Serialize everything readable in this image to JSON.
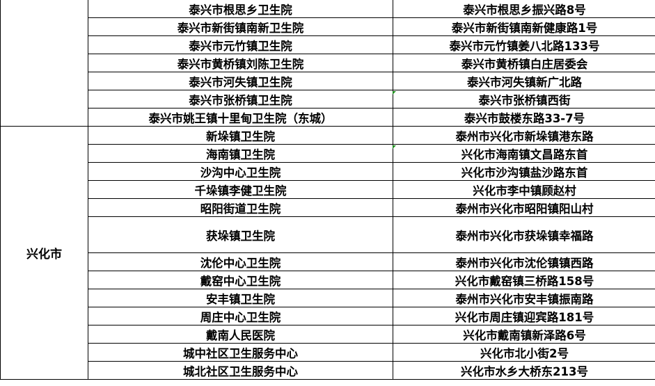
{
  "groups": [
    {
      "city": "",
      "rows": [
        {
          "name": "泰兴市根思乡卫生院",
          "address": "泰兴市根思乡振兴路8号"
        },
        {
          "name": "泰兴市新街镇南新卫生院",
          "address": "泰兴市新街镇南新健康路1号"
        },
        {
          "name": "泰兴市元竹镇卫生院",
          "address": "泰兴市元竹镇姜八北路133号"
        },
        {
          "name": "泰兴市黄桥镇刘陈卫生院",
          "address": "泰兴市黄桥镇白庄居委会"
        },
        {
          "name": "泰兴市河失镇卫生院",
          "address": "泰兴市河失镇新广北路"
        },
        {
          "name": "泰兴市张桥镇卫生院",
          "address": "泰兴市张桥镇西街"
        },
        {
          "name": "泰兴市姚王镇十里甸卫生院（东城）",
          "address": "泰兴市鼓楼东路33-7号"
        }
      ]
    },
    {
      "city": "兴化市",
      "rows": [
        {
          "name": "新垛镇卫生院",
          "address": "泰州市兴化市新垛镇港东路"
        },
        {
          "name": "海南镇卫生院",
          "address": "兴化市海南镇文昌路东首"
        },
        {
          "name": "沙沟中心卫生院",
          "address": "兴化市沙沟镇盐沙路东首"
        },
        {
          "name": "千垛镇李健卫生院",
          "address": "兴化市李中镇顾赵村"
        },
        {
          "name": "昭阳街道卫生院",
          "address": "泰州市兴化市昭阳镇阳山村"
        },
        {
          "name": "获垛镇卫生院",
          "address": "泰州市兴化市获垛镇幸福路"
        },
        {
          "name": "沈伦中心卫生院",
          "address": "泰州市兴化市沈伦镇镇西路"
        },
        {
          "name": "戴窑中心卫生院",
          "address": "兴化市戴窑镇三桥路158号"
        },
        {
          "name": "安丰镇卫生院",
          "address": "泰州市兴化市安丰镇振南路"
        },
        {
          "name": "周庄中心卫生院",
          "address": "兴化市周庄镇迎宾路181号"
        },
        {
          "name": "戴南人民医院",
          "address": "兴化市戴南镇新泽路6号"
        },
        {
          "name": "城中社区卫生服务中心",
          "address": "兴化市北小街2号"
        },
        {
          "name": "城北社区卫生服务中心",
          "address": "兴化市水乡大桥东213号"
        }
      ]
    }
  ]
}
